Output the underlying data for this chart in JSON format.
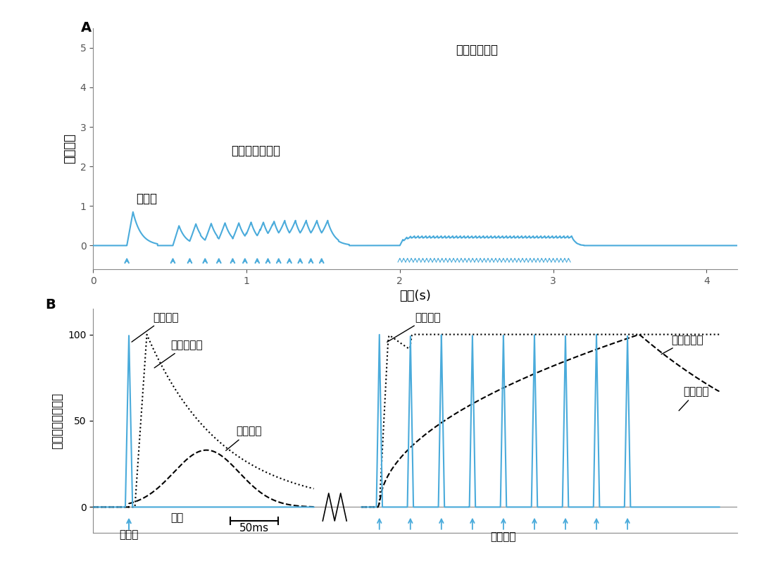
{
  "panel_A_label": "A",
  "panel_B_label": "B",
  "blue_color": "#4AABDB",
  "black_color": "#000000",
  "dark_color": "#333333",
  "ylabel_A": "相对张力",
  "xlabel_A": "时间(s)",
  "ylabel_B": "最大反应的百分比",
  "annotation_single": "单收缩",
  "annotation_incomplete": "不完全强直收缩",
  "annotation_complete": "完全强直收缩",
  "annotation_ap_left": "动作电位",
  "annotation_ca_left": "胞质钙浓度",
  "annotation_force_left": "收缩张力",
  "annotation_ap_right": "动作电位",
  "annotation_ca_right": "胞质钙浓度",
  "annotation_force_right": "收缩张力",
  "label_single_stim": "单刺激",
  "label_time": "时间",
  "label_50ms": "50ms",
  "label_continuous": "连续刺激",
  "fig_bg": "#ffffff"
}
